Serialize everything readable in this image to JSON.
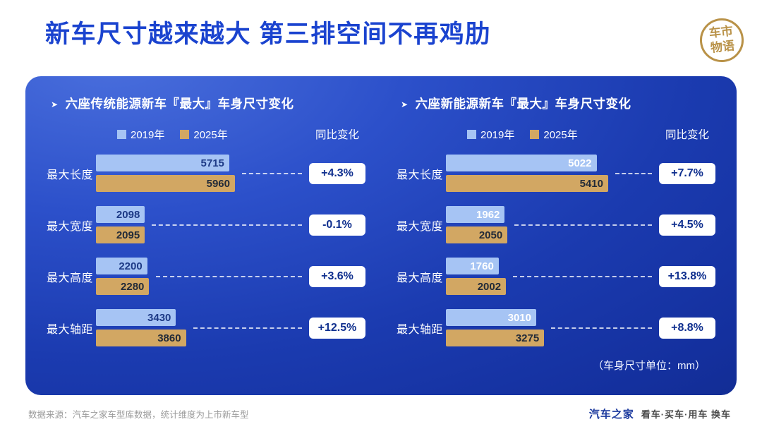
{
  "header": {
    "title": "新车尺寸越来越大 第三排空间不再鸡肋",
    "stamp_text": "车市物语"
  },
  "ui": {
    "arrow_icon": "➤",
    "change_label": "同比变化",
    "unit_note": "（车身尺寸单位：mm）"
  },
  "footer": {
    "source": "数据来源：汽车之家车型库数据，统计维度为上市新车型",
    "brand": "汽车之家",
    "slogan": "看车·买车·用车 换车"
  },
  "colors": {
    "title_blue": "#1a43cf",
    "panel_blue_top": "#4a6fdd",
    "panel_blue_bottom": "#122c92",
    "bar_2019": "#a6c4f4",
    "bar_2025": "#d2a763",
    "pill_text": "#0f2f8e",
    "stamp_gold": "#b99248",
    "brand_blue": "#1c3a9e"
  },
  "chart_data": [
    {
      "type": "bar",
      "orientation": "horizontal",
      "title": "六座传统能源新车『最大』车身尺寸变化",
      "unit": "mm",
      "legend_position": "top",
      "categories": [
        "最大长度",
        "最大宽度",
        "最大高度",
        "最大轴距"
      ],
      "series": [
        {
          "name": "2019年",
          "values": [
            5715,
            2098,
            2200,
            3430
          ]
        },
        {
          "name": "2025年",
          "values": [
            5960,
            2095,
            2280,
            3860
          ]
        }
      ],
      "change": [
        "+4.3%",
        "-0.1%",
        "+3.6%",
        "+12.5%"
      ]
    },
    {
      "type": "bar",
      "orientation": "horizontal",
      "title": "六座新能源新车『最大』车身尺寸变化",
      "unit": "mm",
      "legend_position": "top",
      "categories": [
        "最大长度",
        "最大宽度",
        "最大高度",
        "最大轴距"
      ],
      "series": [
        {
          "name": "2019年",
          "values": [
            5022,
            1962,
            1760,
            3010
          ]
        },
        {
          "name": "2025年",
          "values": [
            5410,
            2050,
            2002,
            3275
          ]
        }
      ],
      "change": [
        "+7.7%",
        "+4.5%",
        "+13.8%",
        "+8.8%"
      ]
    }
  ]
}
